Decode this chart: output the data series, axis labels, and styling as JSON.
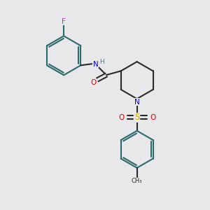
{
  "background_color": "#e8e8ea",
  "bond_color": "#2a2a2a",
  "colors": {
    "N": "#0000ee",
    "O": "#dd0000",
    "F": "#cc22cc",
    "S": "#ccaa00",
    "H": "#557777",
    "C": "#2a2a2a",
    "ring_C": "#2a6a6a"
  },
  "line_width": 1.5
}
